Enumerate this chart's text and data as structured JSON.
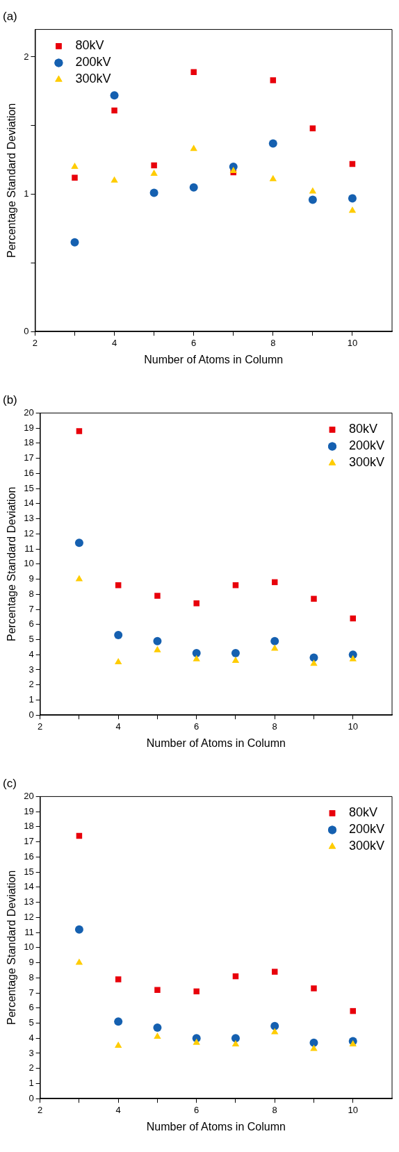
{
  "chart_data": [
    {
      "type": "scatter",
      "title": "(a)",
      "xlabel": "Number of Atoms in Column",
      "ylabel": "Percentage Standard Deviation",
      "x": [
        3,
        4,
        5,
        6,
        7,
        8,
        9,
        10
      ],
      "xlim": [
        2,
        11
      ],
      "xticks": [
        2,
        {
          "value": 3,
          "label": null
        },
        4,
        {
          "value": 5,
          "label": null
        },
        6,
        {
          "value": 7,
          "label": null
        },
        8,
        {
          "value": 9,
          "label": null
        },
        10
      ],
      "ylim": [
        0,
        2.2
      ],
      "yticks": [
        0,
        {
          "value": 0.5,
          "label": null
        },
        1,
        {
          "value": 1.5,
          "label": null
        },
        2
      ],
      "grid": false,
      "legend": "top left",
      "series": [
        {
          "name": "80kV",
          "color": "#e8000b",
          "marker": "square",
          "values": [
            1.12,
            1.61,
            1.21,
            1.89,
            1.16,
            1.83,
            1.48,
            1.22
          ]
        },
        {
          "name": "200kV",
          "color": "#1560b0",
          "marker": "circle",
          "values": [
            0.65,
            1.72,
            1.01,
            1.05,
            1.2,
            1.37,
            0.96,
            0.97
          ]
        },
        {
          "name": "300kV",
          "color": "#ffcc00",
          "marker": "triangle",
          "values": [
            1.2,
            1.1,
            1.15,
            1.33,
            1.17,
            1.11,
            1.02,
            0.88
          ]
        }
      ]
    },
    {
      "type": "scatter",
      "title": "(b)",
      "xlabel": "Number of Atoms in Column",
      "ylabel": "Percentage Standard Deviation",
      "x": [
        3,
        4,
        5,
        6,
        7,
        8,
        9,
        10
      ],
      "xlim": [
        2,
        11
      ],
      "xticks": [
        2,
        {
          "value": 3,
          "label": null
        },
        4,
        {
          "value": 5,
          "label": null
        },
        6,
        {
          "value": 7,
          "label": null
        },
        8,
        {
          "value": 9,
          "label": null
        },
        10
      ],
      "ylim": [
        0,
        20
      ],
      "yticks": [
        0,
        1,
        2,
        3,
        4,
        5,
        6,
        7,
        8,
        9,
        10,
        11,
        12,
        13,
        14,
        15,
        16,
        17,
        18,
        19,
        20
      ],
      "grid": false,
      "legend": "top right",
      "series": [
        {
          "name": "80kV",
          "color": "#e8000b",
          "marker": "square",
          "values": [
            18.8,
            8.6,
            7.9,
            7.4,
            8.6,
            8.8,
            7.7,
            6.4
          ]
        },
        {
          "name": "200kV",
          "color": "#1560b0",
          "marker": "circle",
          "values": [
            11.4,
            5.3,
            4.9,
            4.1,
            4.1,
            4.9,
            3.8,
            4.0
          ]
        },
        {
          "name": "300kV",
          "color": "#ffcc00",
          "marker": "triangle",
          "values": [
            9.0,
            3.5,
            4.3,
            3.7,
            3.6,
            4.4,
            3.4,
            3.7
          ]
        }
      ]
    },
    {
      "type": "scatter",
      "title": "(c)",
      "xlabel": "Number of Atoms in Column",
      "ylabel": "Percentage Standard Deviation",
      "x": [
        3,
        4,
        5,
        6,
        7,
        8,
        9,
        10
      ],
      "xlim": [
        2,
        11
      ],
      "xticks": [
        2,
        {
          "value": 3,
          "label": null
        },
        4,
        {
          "value": 5,
          "label": null
        },
        6,
        {
          "value": 7,
          "label": null
        },
        8,
        {
          "value": 9,
          "label": null
        },
        10
      ],
      "ylim": [
        0,
        20
      ],
      "yticks": [
        0,
        1,
        2,
        3,
        4,
        5,
        6,
        7,
        8,
        9,
        10,
        11,
        12,
        13,
        14,
        15,
        16,
        17,
        18,
        19,
        20
      ],
      "grid": false,
      "legend": "top right",
      "series": [
        {
          "name": "80kV",
          "color": "#e8000b",
          "marker": "square",
          "values": [
            17.4,
            7.9,
            7.2,
            7.1,
            8.1,
            8.4,
            7.3,
            5.8
          ]
        },
        {
          "name": "200kV",
          "color": "#1560b0",
          "marker": "circle",
          "values": [
            11.2,
            5.1,
            4.7,
            4.0,
            4.0,
            4.8,
            3.7,
            3.8
          ]
        },
        {
          "name": "300kV",
          "color": "#ffcc00",
          "marker": "triangle",
          "values": [
            9.0,
            3.5,
            4.1,
            3.7,
            3.6,
            4.4,
            3.3,
            3.6
          ]
        }
      ]
    }
  ]
}
